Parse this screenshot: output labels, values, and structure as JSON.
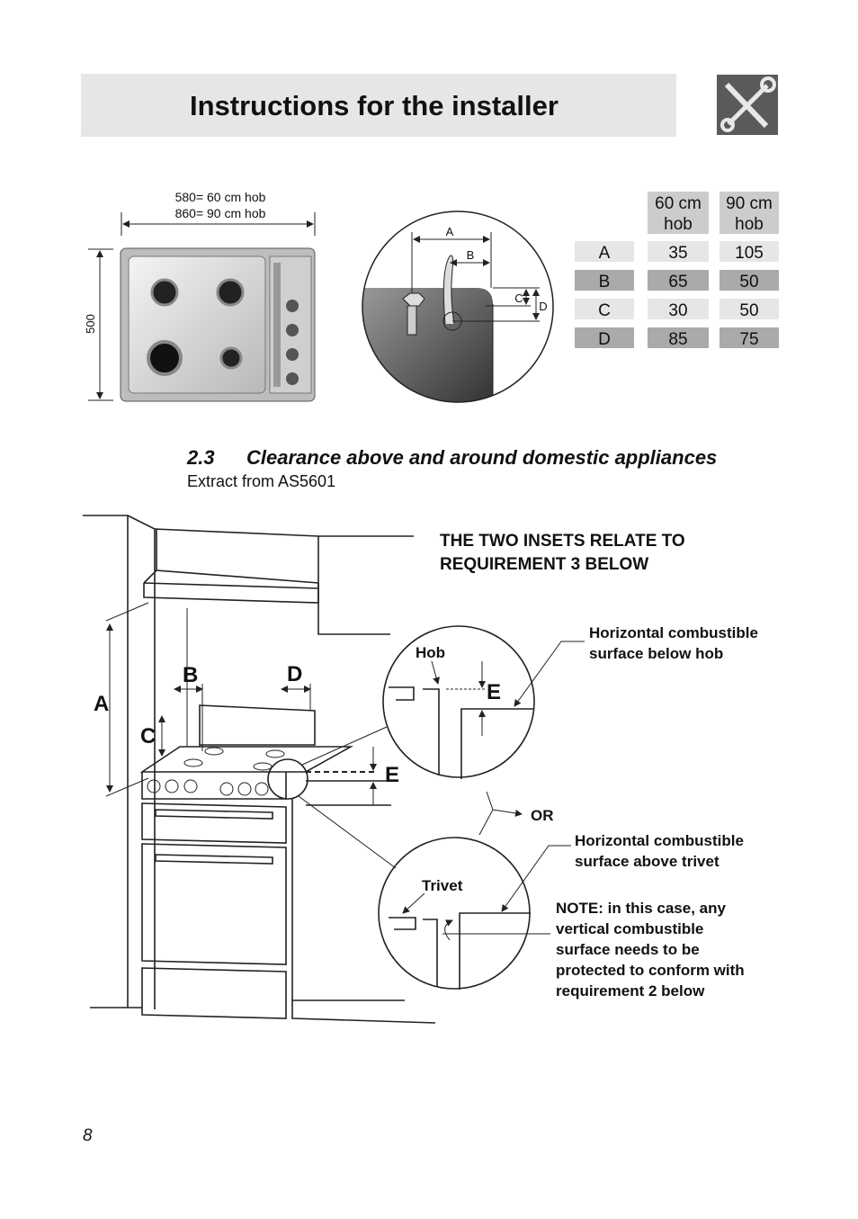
{
  "header": {
    "title": "Instructions for the installer"
  },
  "hob_diagram": {
    "width_labels": [
      "580= 60 cm hob",
      "860= 90 cm hob"
    ],
    "depth_label": "500"
  },
  "detail_diagram": {
    "labels": [
      "A",
      "B",
      "C",
      "D"
    ]
  },
  "table": {
    "headers": [
      "60 cm hob",
      "90 cm hob"
    ],
    "rows": [
      [
        "A",
        "35",
        "105"
      ],
      [
        "B",
        "65",
        "50"
      ],
      [
        "C",
        "30",
        "50"
      ],
      [
        "D",
        "85",
        "75"
      ]
    ]
  },
  "section": {
    "number": "2.3",
    "title": "Clearance above and around domestic appliances",
    "subtitle": "Extract from AS5601"
  },
  "illustration": {
    "dimension_labels": [
      "A",
      "B",
      "C",
      "D",
      "E"
    ],
    "insets_note": [
      "THE TWO INSETS RELATE TO",
      "REQUIREMENT 3 BELOW"
    ],
    "upper_inset": {
      "label": "Hob",
      "dimension": "E",
      "caption": [
        "Horizontal combustible",
        "surface below hob"
      ]
    },
    "separator": "OR",
    "lower_inset": {
      "label": "Trivet",
      "caption": [
        "Horizontal combustible",
        "surface above trivet"
      ]
    },
    "note": [
      "NOTE: in this case, any",
      "vertical combustible",
      "surface needs to be",
      "protected to conform with",
      "requirement 2 below"
    ]
  },
  "footer": {
    "page_number": "8"
  }
}
